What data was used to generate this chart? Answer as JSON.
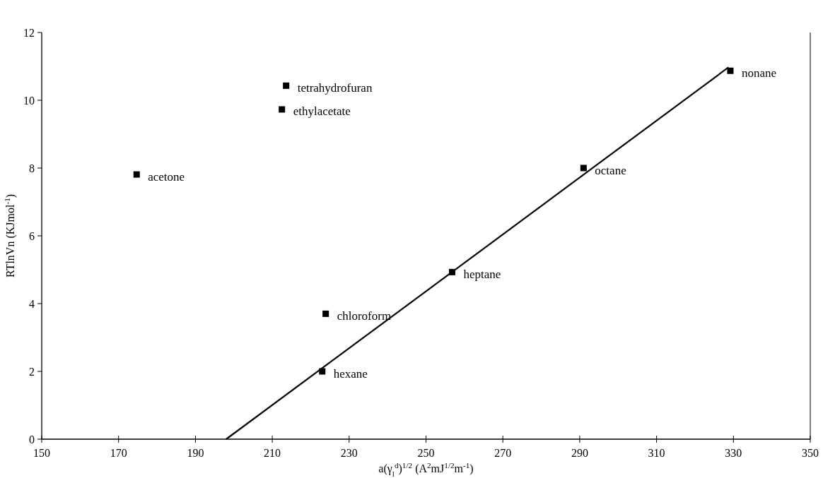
{
  "chart_data": {
    "type": "scatter",
    "xlabel": "a(γ$_{l}$$^{d}$)$^{1/2}$ (A$^{2}$mJ$^{1/2}$m$^{-1}$)",
    "ylabel": "RTlnVn (KJmol$^{-1}$)",
    "xlim": [
      150,
      350
    ],
    "xticks": [
      150,
      170,
      190,
      210,
      230,
      250,
      270,
      290,
      310,
      330,
      350
    ],
    "ylim": [
      0,
      12
    ],
    "yticks": [
      0,
      2,
      4,
      6,
      8,
      10,
      12
    ],
    "marker": "square",
    "grid": false,
    "series": [
      {
        "color": "#000000",
        "x": [
          174.7,
          213.6,
          212.5,
          223.9,
          223,
          256.8,
          291,
          329.2
        ],
        "values": [
          7.81,
          10.43,
          9.73,
          3.7,
          2,
          4.93,
          8,
          10.87
        ]
      },
      {
        "type": "line",
        "color": "#000000",
        "line_style": "solid",
        "marker": "none",
        "x": [
          198,
          328.7
        ],
        "values": [
          0,
          10.97
        ]
      }
    ],
    "annotations": [
      {
        "text": "acetone",
        "x": 174.7,
        "y": 7.81
      },
      {
        "text": "tetrahydrofuran",
        "x": 213.6,
        "y": 10.43
      },
      {
        "text": "ethylacetate",
        "x": 212.5,
        "y": 9.73
      },
      {
        "text": "chloroform",
        "x": 223.9,
        "y": 3.7
      },
      {
        "text": "hexane",
        "x": 223,
        "y": 2
      },
      {
        "text": "heptane",
        "x": 256.8,
        "y": 4.93
      },
      {
        "text": "octane",
        "x": 291,
        "y": 8
      },
      {
        "text": "nonane",
        "x": 329.2,
        "y": 10.87
      }
    ]
  }
}
